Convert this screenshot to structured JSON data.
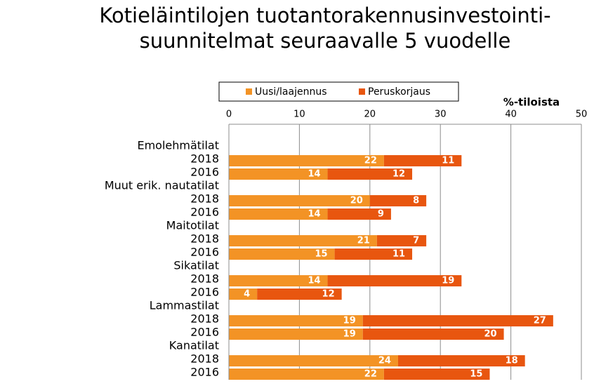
{
  "chart_data": {
    "type": "stacked-bar-horizontal",
    "title": "Kotieläintilojen tuotantorakennusinvestointi-\nsuunnitelmat seuraavalle 5 vuodelle",
    "xlabel": "%-tiloista",
    "categories": [
      "Emolehmätilat",
      "2018",
      "2016",
      "Muut erik. nautatilat",
      "2018",
      "2016",
      "Maitotilat",
      "2018",
      "2016",
      "Sikatilat",
      "2018",
      "2016",
      "Lammastilat",
      "2018",
      "2016",
      "Kanatilat",
      "2018",
      "2016"
    ],
    "series": [
      {
        "name": "Uusi/laajennus",
        "color": "#f39325",
        "values": [
          null,
          22,
          14,
          null,
          20,
          14,
          null,
          21,
          15,
          null,
          14,
          4,
          null,
          19,
          19,
          null,
          24,
          22
        ]
      },
      {
        "name": "Peruskorjaus",
        "color": "#e8560f",
        "values": [
          null,
          11,
          12,
          null,
          8,
          9,
          null,
          7,
          11,
          null,
          19,
          12,
          null,
          27,
          20,
          null,
          18,
          15
        ]
      }
    ],
    "xlim": [
      0,
      50
    ],
    "xticks": [
      0,
      10,
      20,
      30,
      40,
      50
    ],
    "grid": true,
    "legend": "top"
  }
}
